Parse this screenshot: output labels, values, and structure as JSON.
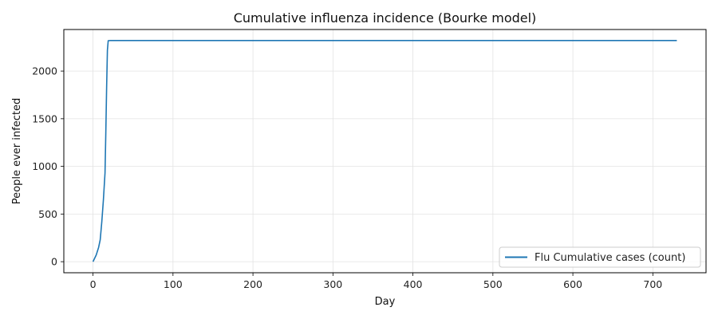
{
  "chart_data": {
    "type": "line",
    "title": "Cumulative influenza incidence (Bourke model)",
    "xlabel": "Day",
    "ylabel": "People ever infected",
    "xlim": [
      -36.5,
      766.5
    ],
    "ylim": [
      -116,
      2436
    ],
    "x_ticks": [
      0,
      100,
      200,
      300,
      400,
      500,
      600,
      700
    ],
    "y_ticks": [
      0,
      500,
      1000,
      1500,
      2000
    ],
    "grid": true,
    "legend_position": "bottom-right",
    "series": [
      {
        "name": "Flu Cumulative cases (count)",
        "color": "#1f77b4",
        "x": [
          0,
          4,
          7,
          9,
          11,
          13,
          15,
          16,
          17,
          18,
          19,
          21,
          25,
          30,
          40,
          60,
          100,
          200,
          300,
          400,
          500,
          600,
          700,
          730
        ],
        "y": [
          0,
          70,
          150,
          230,
          420,
          650,
          930,
          1350,
          1820,
          2220,
          2318,
          2320,
          2320,
          2320,
          2320,
          2320,
          2320,
          2320,
          2320,
          2320,
          2320,
          2320,
          2320,
          2320
        ]
      }
    ]
  }
}
